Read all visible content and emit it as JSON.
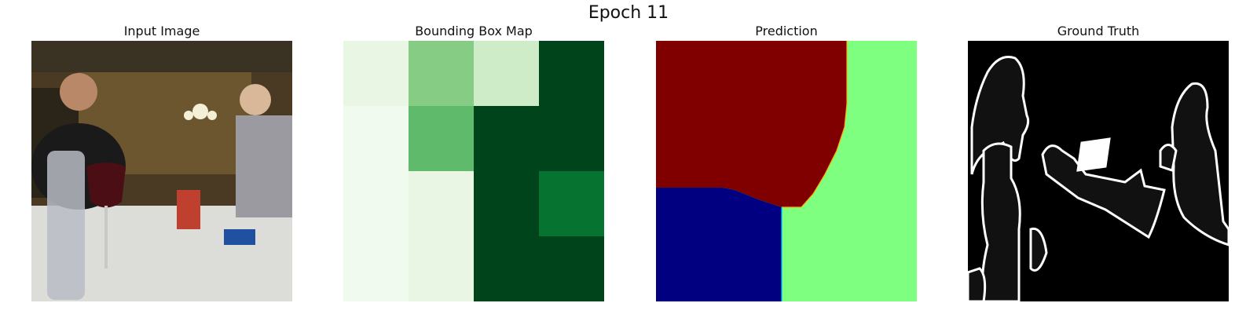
{
  "figure": {
    "title": "Epoch 11"
  },
  "panels": [
    {
      "title": "Input Image",
      "icon": "photo-of-dinner-table"
    },
    {
      "title": "Bounding Box Map",
      "colormap": "Greens",
      "grid": [
        [
          0.1,
          0.45,
          0.22,
          1.0
        ],
        [
          0.04,
          0.55,
          1.0,
          1.0
        ],
        [
          0.04,
          0.1,
          1.0,
          0.85
        ],
        [
          0.04,
          0.1,
          1.0,
          1.0
        ]
      ]
    },
    {
      "title": "Prediction",
      "colors": {
        "red": "#800000",
        "green": "#7fff7f",
        "blue": "#000080"
      }
    },
    {
      "title": "Ground Truth",
      "colors": {
        "background": "#000000",
        "fill": "#111111",
        "edge": "#ffffff"
      }
    }
  ]
}
